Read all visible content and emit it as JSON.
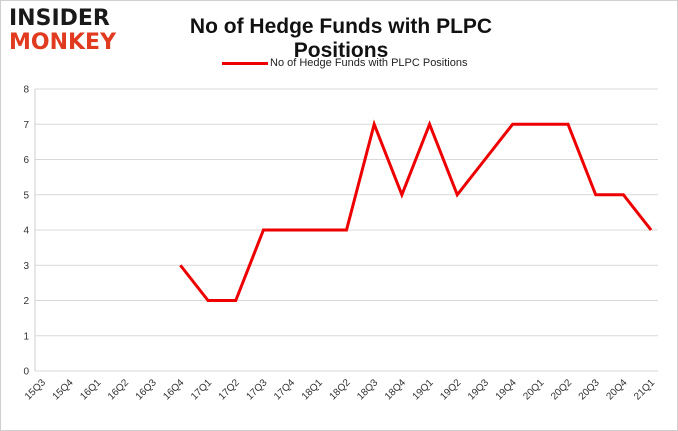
{
  "logo": {
    "line1": "INSIDER",
    "line2": "MONKEY"
  },
  "chart_data": {
    "type": "line",
    "title": "No of Hedge Funds with PLPC Positions",
    "xlabel": "",
    "ylabel": "",
    "categories": [
      "15Q3",
      "15Q4",
      "16Q1",
      "16Q2",
      "16Q3",
      "16Q4",
      "17Q1",
      "17Q2",
      "17Q3",
      "17Q4",
      "18Q1",
      "18Q2",
      "18Q3",
      "18Q4",
      "19Q1",
      "19Q2",
      "19Q3",
      "19Q4",
      "20Q1",
      "20Q2",
      "20Q3",
      "20Q4",
      "21Q1"
    ],
    "series": [
      {
        "name": "No of Hedge Funds with PLPC Positions",
        "values": [
          null,
          null,
          null,
          null,
          null,
          3,
          2,
          2,
          4,
          4,
          4,
          4,
          7,
          5,
          7,
          5,
          6,
          7,
          7,
          7,
          5,
          5,
          4
        ]
      }
    ],
    "ylim": [
      0,
      8
    ],
    "yticks": [
      0,
      1,
      2,
      3,
      4,
      5,
      6,
      7,
      8
    ],
    "grid": true,
    "legend": "top-center",
    "colors": {
      "series": "#ee0000",
      "grid": "#d9d9d9",
      "logo_accent": "#e03a1f"
    }
  }
}
